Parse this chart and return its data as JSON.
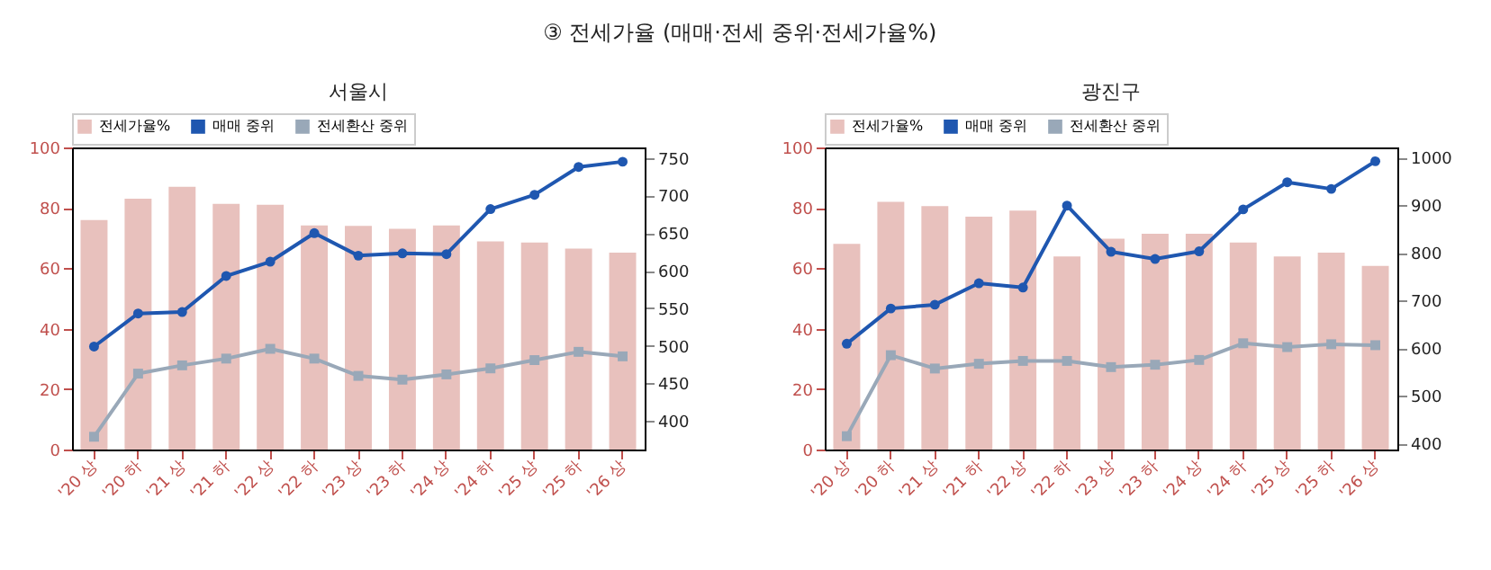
{
  "chart_data": [
    {
      "type": "bar",
      "title": "③ 전세가율 (매매·전세 중위·전세가율%)",
      "subtitle": "서울시",
      "categories": [
        "'20 상",
        "'20 하",
        "'21 상",
        "'21 하",
        "'22 상",
        "'22 하",
        "'23 상",
        "'23 하",
        "'24 상",
        "'24 하",
        "'25 상",
        "'25 하",
        "'26 상"
      ],
      "series": [
        {
          "name": "전세가율%",
          "color": "#e8c1bd",
          "values": [
            76,
            83,
            87,
            81.3,
            81,
            74.2,
            74,
            73.1,
            74.2,
            68.9,
            68.5,
            66.5,
            65.2
          ]
        },
        {
          "name": "매매 중위",
          "type": "line",
          "axis": "y2",
          "color": "#1f57b0",
          "marker": "circle",
          "values": [
            499,
            543,
            545,
            593,
            612,
            650,
            620,
            623,
            622,
            682,
            701,
            738,
            745
          ]
        },
        {
          "name": "전세환산 중위",
          "type": "line",
          "axis": "y2",
          "color": "#99a8b8",
          "marker": "square",
          "values": [
            379,
            463,
            474,
            483,
            496,
            483,
            460,
            455,
            462,
            470,
            481,
            492,
            486
          ]
        }
      ],
      "ylim": [
        0,
        100
      ],
      "yticks": [
        0,
        20,
        40,
        60,
        80,
        100
      ],
      "y2lim": [
        362,
        764
      ],
      "y2ticks": [
        400,
        450,
        500,
        550,
        600,
        650,
        700,
        750
      ],
      "legend": "top"
    },
    {
      "type": "bar",
      "subtitle": "광진구",
      "categories": [
        "'20 상",
        "'20 하",
        "'21 상",
        "'21 하",
        "'22 상",
        "'22 하",
        "'23 상",
        "'23 하",
        "'24 상",
        "'24 하",
        "'25 상",
        "'25 하",
        "'26 상"
      ],
      "series": [
        {
          "name": "전세가율%",
          "color": "#e8c1bd",
          "values": [
            68.1,
            82,
            80.6,
            77.1,
            79.1,
            63.9,
            69.8,
            71.4,
            71.4,
            68.5,
            63.9,
            65.2,
            60.8
          ]
        },
        {
          "name": "매매 중위",
          "type": "line",
          "axis": "y2",
          "color": "#1f57b0",
          "marker": "circle",
          "values": [
            609,
            683,
            691,
            736,
            727,
            899,
            802,
            787,
            803,
            891,
            948,
            934,
            992
          ]
        },
        {
          "name": "전세환산 중위",
          "type": "line",
          "axis": "y2",
          "color": "#99a8b8",
          "marker": "square",
          "values": [
            415,
            585,
            557,
            567,
            573,
            573,
            560,
            565,
            575,
            610,
            602,
            608,
            606
          ]
        }
      ],
      "ylim": [
        0,
        100
      ],
      "yticks": [
        0,
        20,
        40,
        60,
        80,
        100
      ],
      "y2lim": [
        387,
        1021
      ],
      "y2ticks": [
        400,
        500,
        600,
        700,
        800,
        900,
        1000
      ],
      "legend": "top"
    }
  ]
}
